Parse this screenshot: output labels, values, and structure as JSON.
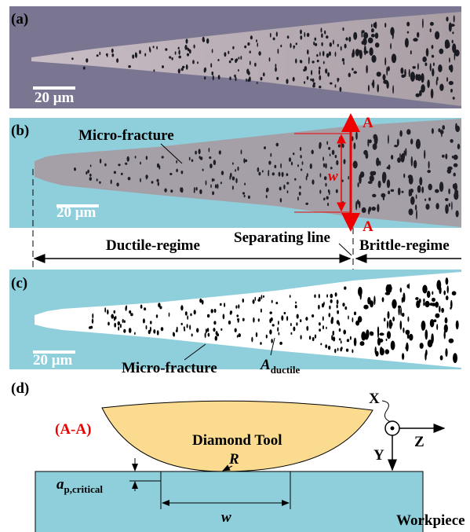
{
  "panel_a": {
    "label": "(a)",
    "scale_bar": "20 μm"
  },
  "panel_b": {
    "label": "(b)",
    "feature": "Micro-fracture",
    "section_top": "A",
    "section_bottom": "A",
    "width_symbol": "w",
    "scale_bar": "20 μm"
  },
  "regimes": {
    "ductile": "Ductile-regime",
    "separator": "Separating line",
    "brittle": "Brittle-regime"
  },
  "panel_c": {
    "label": "(c)",
    "feature": "Micro-fracture",
    "area_symbol": "A",
    "area_subscript": "ductile",
    "scale_bar": "20 μm"
  },
  "panel_d": {
    "label": "(d)",
    "section": "(A-A)",
    "tool": "Diamond Tool",
    "radius": "R",
    "axis_x": "X",
    "axis_z": "Z",
    "axis_y": "Y",
    "depth_symbol": "a",
    "depth_subscript": "p,critical",
    "width_symbol": "w",
    "workpiece": "Workpiece"
  }
}
